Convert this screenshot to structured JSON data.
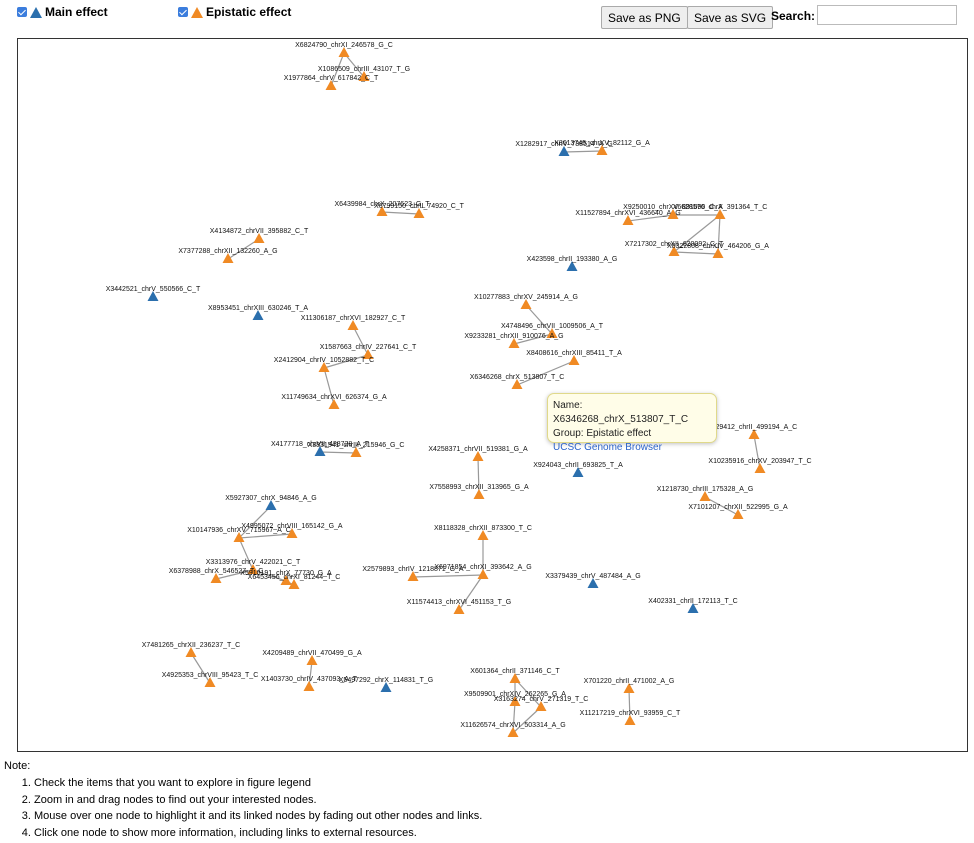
{
  "legend": {
    "main": {
      "label": "Main effect",
      "checked": true,
      "color": "#2b6fad"
    },
    "epistatic": {
      "label": "Epistatic effect",
      "checked": true,
      "color": "#f08a24"
    }
  },
  "toolbar": {
    "save_png": "Save as PNG",
    "save_svg": "Save as SVG",
    "search_label": "Search:",
    "search_value": ""
  },
  "graph": {
    "nodes": [
      {
        "label": "X6824790_chrXI_246578_G_C",
        "g": "e"
      },
      {
        "label": "X1086509_chrIII_43107_T_G",
        "g": "e"
      },
      {
        "label": "X1977864_chrV_617842_C_T",
        "g": "e"
      },
      {
        "label": "X1282917_chrIV_738514_A_G",
        "g": "m"
      },
      {
        "label": "X8613745_chrXV_82112_G_A",
        "g": "e"
      },
      {
        "label": "X6439984_chrX_207623_G_T",
        "g": "e"
      },
      {
        "label": "X6799150_chrII_74920_C_T",
        "g": "e"
      },
      {
        "label": "X11527894_chrXVI_436640_A_G",
        "g": "e"
      },
      {
        "label": "X9250010_chrXV_891090_C_A",
        "g": "e"
      },
      {
        "label": "X6628576_chrX_391364_T_C",
        "g": "e"
      },
      {
        "label": "X7217302_chrXII_620092_C_T",
        "g": "e"
      },
      {
        "label": "X8322808_chrXIV_464206_G_A",
        "g": "e"
      },
      {
        "label": "X4134872_chrVII_395882_C_T",
        "g": "e"
      },
      {
        "label": "X7377288_chrXII_132260_A_G",
        "g": "e"
      },
      {
        "label": "X423598_chrII_193380_A_G",
        "g": "m"
      },
      {
        "label": "X3442521_chrV_550566_C_T",
        "g": "m"
      },
      {
        "label": "X8953451_chrXIII_630246_T_A",
        "g": "m"
      },
      {
        "label": "X11306187_chrXVI_182927_C_T",
        "g": "e"
      },
      {
        "label": "X10277883_chrXV_245914_A_G",
        "g": "e"
      },
      {
        "label": "X4748496_chrVII_1009506_A_T",
        "g": "e"
      },
      {
        "label": "X9233281_chrXII_910076_A_G",
        "g": "e"
      },
      {
        "label": "X1587663_chrIV_227641_C_T",
        "g": "e"
      },
      {
        "label": "X2412904_chrIV_1052882_T_C",
        "g": "e"
      },
      {
        "label": "X8408616_chrXIII_85411_T_A",
        "g": "e"
      },
      {
        "label": "X6346268_chrX_513807_T_C",
        "g": "e"
      },
      {
        "label": "X11749634_chrXVI_626374_G_A",
        "g": "e"
      },
      {
        "label": "X4177718_chrVII_438728_A_T",
        "g": "m"
      },
      {
        "label": "X3831541_chrIII_215946_G_C",
        "g": "e"
      },
      {
        "label": "X4258371_chrVII_519381_G_A",
        "g": "e"
      },
      {
        "label": "X7558993_chrXII_313965_G_A",
        "g": "e"
      },
      {
        "label": "X924043_chrII_693825_T_A",
        "g": "m"
      },
      {
        "label": "X29412_chrII_499194_A_C",
        "g": "e"
      },
      {
        "label": "X10235916_chrXV_203947_T_C",
        "g": "e"
      },
      {
        "label": "X1218730_chrIII_175328_A_G",
        "g": "e"
      },
      {
        "label": "X7101207_chrXII_522995_G_A",
        "g": "e"
      },
      {
        "label": "X5927307_chrX_94846_A_G",
        "g": "m"
      },
      {
        "label": "X10147936_chrXV_715967_A_C",
        "g": "e"
      },
      {
        "label": "X4995072_chrVIII_165142_G_A",
        "g": "e"
      },
      {
        "label": "X8118328_chrXII_873300_T_C",
        "g": "e"
      },
      {
        "label": "X3313976_chrV_422021_C_T",
        "g": "e"
      },
      {
        "label": "X6378988_chrX_546527_T_C",
        "g": "e"
      },
      {
        "label": "X5910191_chrX_77730_G_A",
        "g": "e"
      },
      {
        "label": "X6453456_chrXI_81244_T_C",
        "g": "e"
      },
      {
        "label": "X2579893_chrIV_1218871_G_A",
        "g": "e"
      },
      {
        "label": "X6971854_chrXI_393642_A_G",
        "g": "e"
      },
      {
        "label": "X3379439_chrV_487484_A_G",
        "g": "m"
      },
      {
        "label": "X11574413_chrXVI_451153_T_G",
        "g": "e"
      },
      {
        "label": "X402331_chrII_172113_T_C",
        "g": "m"
      },
      {
        "label": "X7481265_chrXII_236237_T_C",
        "g": "e"
      },
      {
        "label": "X4209489_chrVII_470499_G_A",
        "g": "e"
      },
      {
        "label": "X4925353_chrVIII_95423_T_C",
        "g": "e"
      },
      {
        "label": "X1403730_chrIV_437093_A_T",
        "g": "e"
      },
      {
        "label": "X5497292_chrX_114831_T_G",
        "g": "m"
      },
      {
        "label": "X601364_chrII_371146_C_T",
        "g": "e"
      },
      {
        "label": "X701220_chrII_471002_A_G",
        "g": "e"
      },
      {
        "label": "X9509901_chrXIV_262265_G_A",
        "g": "e"
      },
      {
        "label": "X3163274_chrV_271319_T_C",
        "g": "e"
      },
      {
        "label": "X11217219_chrXVI_93959_C_T",
        "g": "e"
      },
      {
        "label": "X11626574_chrXVI_503314_A_G",
        "g": "e"
      }
    ],
    "links": [
      [
        0,
        1
      ],
      [
        0,
        2
      ],
      [
        3,
        4
      ],
      [
        5,
        6
      ],
      [
        7,
        8
      ],
      [
        8,
        9
      ],
      [
        9,
        10
      ],
      [
        9,
        11
      ],
      [
        10,
        11
      ],
      [
        12,
        13
      ],
      [
        17,
        21
      ],
      [
        18,
        19
      ],
      [
        19,
        20
      ],
      [
        21,
        22
      ],
      [
        22,
        25
      ],
      [
        23,
        24
      ],
      [
        26,
        27
      ],
      [
        28,
        29
      ],
      [
        31,
        32
      ],
      [
        33,
        34
      ],
      [
        35,
        36
      ],
      [
        36,
        37
      ],
      [
        36,
        39
      ],
      [
        39,
        40
      ],
      [
        39,
        41
      ],
      [
        41,
        42
      ],
      [
        38,
        44
      ],
      [
        43,
        44
      ],
      [
        44,
        46
      ],
      [
        48,
        50
      ],
      [
        49,
        51
      ],
      [
        53,
        55
      ],
      [
        53,
        56
      ],
      [
        55,
        58
      ],
      [
        56,
        58
      ],
      [
        54,
        57
      ]
    ]
  },
  "tooltip": {
    "name": "Name: X6346268_chrX_513807_T_C",
    "group": "Group: Epistatic effect",
    "link": "UCSC Genome Browser"
  },
  "note": {
    "title": "Note:",
    "items": [
      "Check the items that you want to explore in figure legend",
      "Zoom in and drag nodes to find out your interested nodes.",
      "Mouse over one node to highlight it and its linked nodes by fading out other nodes and links.",
      "Click one node to show more information, including links to external resources."
    ]
  }
}
